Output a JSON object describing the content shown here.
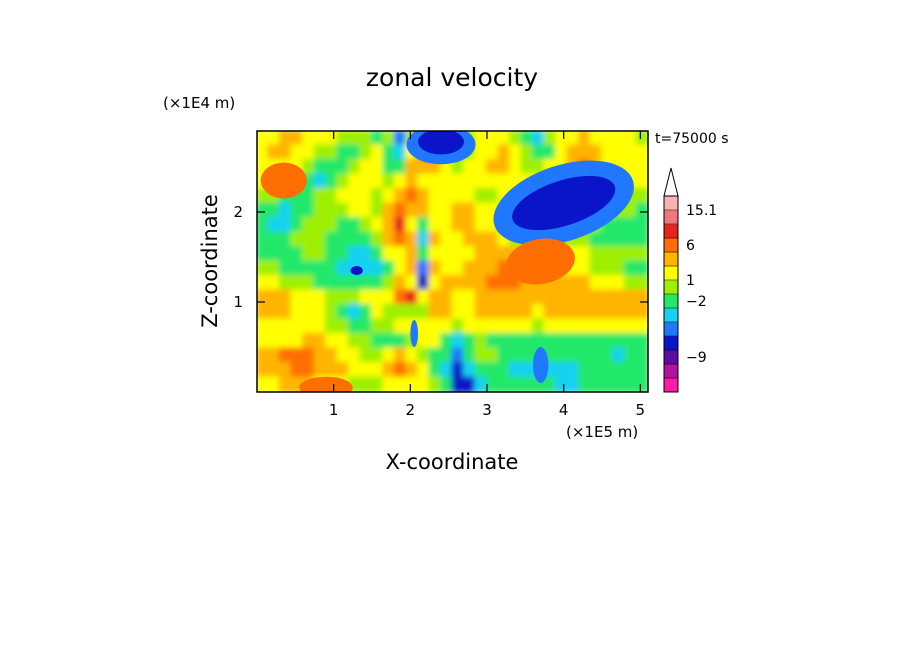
{
  "chart_data": {
    "type": "heatmap",
    "title": "zonal velocity",
    "time_label": "t=75000 s",
    "xlabel": "X-coordinate",
    "ylabel": "Z-coordinate",
    "x_scale_label": "(×1E5 m)",
    "y_scale_label": "(×1E4 m)",
    "x_range": [
      0,
      5.1
    ],
    "y_range": [
      0,
      2.9
    ],
    "x_ticks": [
      {
        "value": 1,
        "label": "1"
      },
      {
        "value": 2,
        "label": "2"
      },
      {
        "value": 3,
        "label": "3"
      },
      {
        "value": 4,
        "label": "4"
      },
      {
        "value": 5,
        "label": "5"
      }
    ],
    "y_ticks": [
      {
        "value": 1,
        "label": "1"
      },
      {
        "value": 2,
        "label": "2"
      }
    ],
    "colorbar": {
      "levels": [
        {
          "color": "#ff1aa8"
        },
        {
          "color": "#b3119e"
        },
        {
          "color": "#5a0fa0"
        },
        {
          "color": "#0a14c8"
        },
        {
          "color": "#1f78ff"
        },
        {
          "color": "#16d2f0"
        },
        {
          "color": "#23e86a"
        },
        {
          "color": "#9ef000"
        },
        {
          "color": "#ffff00"
        },
        {
          "color": "#ffb400"
        },
        {
          "color": "#ff6e00"
        },
        {
          "color": "#e8231e"
        },
        {
          "color": "#f07878"
        },
        {
          "color": "#f7b3b3"
        }
      ],
      "labels": [
        {
          "text": "15.1",
          "level": 13
        },
        {
          "text": "6",
          "level": 10.5
        },
        {
          "text": "1",
          "level": 8
        },
        {
          "text": "−2",
          "level": 6.5
        },
        {
          "text": "−9",
          "level": 2.5
        }
      ],
      "extend": "max"
    },
    "field_grid": {
      "cols": 34,
      "rows": 18,
      "values": [
        [
          8,
          8,
          9,
          9,
          8,
          8,
          8,
          7,
          7,
          7,
          6,
          7,
          4,
          7,
          8,
          9,
          7,
          5,
          7,
          8,
          8,
          8,
          7,
          6,
          5,
          7,
          8,
          8,
          9,
          8,
          8,
          8,
          8,
          7
        ],
        [
          8,
          9,
          9,
          8,
          8,
          7,
          7,
          6,
          6,
          7,
          8,
          6,
          5,
          8,
          10,
          11,
          9,
          6,
          7,
          8,
          8,
          9,
          8,
          7,
          6,
          6,
          8,
          9,
          9,
          9,
          8,
          8,
          8,
          8
        ],
        [
          8,
          8,
          8,
          8,
          7,
          6,
          6,
          6,
          7,
          8,
          8,
          6,
          6,
          9,
          9,
          9,
          8,
          7,
          8,
          8,
          9,
          9,
          8,
          7,
          7,
          8,
          8,
          9,
          10,
          9,
          8,
          8,
          8,
          8
        ],
        [
          8,
          8,
          8,
          7,
          6,
          5,
          6,
          7,
          8,
          8,
          8,
          7,
          8,
          9,
          8,
          8,
          8,
          8,
          8,
          8,
          8,
          8,
          8,
          8,
          8,
          8,
          8,
          9,
          9,
          9,
          9,
          8,
          8,
          8
        ],
        [
          7,
          7,
          6,
          6,
          6,
          7,
          7,
          8,
          8,
          8,
          7,
          8,
          9,
          10,
          9,
          8,
          8,
          8,
          8,
          7,
          7,
          8,
          8,
          8,
          8,
          8,
          8,
          8,
          8,
          8,
          8,
          8,
          7,
          7
        ],
        [
          6,
          6,
          5,
          6,
          6,
          7,
          7,
          7,
          8,
          8,
          7,
          9,
          10,
          9,
          9,
          8,
          8,
          9,
          9,
          8,
          8,
          8,
          8,
          8,
          9,
          9,
          8,
          8,
          8,
          8,
          8,
          7,
          7,
          6
        ],
        [
          6,
          5,
          5,
          6,
          7,
          7,
          7,
          6,
          6,
          7,
          8,
          9,
          11,
          8,
          6,
          8,
          8,
          9,
          9,
          8,
          8,
          7,
          7,
          7,
          7,
          7,
          7,
          7,
          7,
          7,
          6,
          6,
          6,
          6
        ],
        [
          6,
          6,
          6,
          7,
          7,
          7,
          6,
          6,
          6,
          6,
          7,
          9,
          10,
          9,
          5,
          9,
          8,
          8,
          9,
          9,
          9,
          8,
          7,
          7,
          7,
          7,
          7,
          7,
          7,
          6,
          6,
          6,
          6,
          6
        ],
        [
          6,
          6,
          6,
          6,
          7,
          7,
          6,
          6,
          5,
          5,
          6,
          8,
          8,
          9,
          6,
          8,
          8,
          8,
          8,
          9,
          9,
          9,
          9,
          8,
          8,
          8,
          8,
          8,
          8,
          7,
          7,
          7,
          7,
          7
        ],
        [
          7,
          7,
          6,
          6,
          6,
          6,
          6,
          5,
          5,
          5,
          5,
          6,
          8,
          9,
          4,
          9,
          8,
          8,
          9,
          9,
          9,
          10,
          10,
          9,
          9,
          9,
          8,
          8,
          8,
          7,
          7,
          7,
          6,
          6
        ],
        [
          8,
          8,
          7,
          7,
          7,
          6,
          6,
          6,
          6,
          6,
          6,
          7,
          9,
          8,
          3,
          8,
          9,
          9,
          9,
          9,
          10,
          10,
          10,
          9,
          9,
          9,
          9,
          9,
          9,
          8,
          8,
          8,
          7,
          7
        ],
        [
          9,
          9,
          9,
          8,
          8,
          8,
          7,
          7,
          7,
          8,
          8,
          8,
          10,
          11,
          8,
          9,
          9,
          8,
          8,
          9,
          9,
          9,
          9,
          9,
          9,
          9,
          9,
          9,
          9,
          9,
          9,
          9,
          9,
          9
        ],
        [
          9,
          9,
          9,
          8,
          8,
          8,
          7,
          6,
          5,
          6,
          8,
          7,
          7,
          7,
          7,
          9,
          9,
          8,
          8,
          9,
          9,
          9,
          9,
          9,
          8,
          9,
          9,
          9,
          9,
          9,
          9,
          9,
          9,
          9
        ],
        [
          8,
          8,
          8,
          8,
          8,
          8,
          7,
          7,
          6,
          6,
          7,
          7,
          8,
          8,
          8,
          8,
          8,
          7,
          8,
          8,
          8,
          8,
          8,
          8,
          7,
          8,
          8,
          8,
          8,
          8,
          8,
          8,
          8,
          8
        ],
        [
          8,
          8,
          8,
          8,
          9,
          9,
          8,
          8,
          7,
          7,
          6,
          6,
          6,
          7,
          8,
          8,
          6,
          5,
          6,
          7,
          6,
          6,
          6,
          6,
          6,
          6,
          6,
          6,
          6,
          6,
          6,
          6,
          6,
          6
        ],
        [
          9,
          9,
          10,
          10,
          10,
          9,
          9,
          8,
          8,
          7,
          7,
          8,
          9,
          8,
          7,
          6,
          6,
          4,
          6,
          7,
          7,
          6,
          6,
          6,
          6,
          6,
          6,
          6,
          6,
          6,
          6,
          5,
          6,
          6
        ],
        [
          9,
          9,
          9,
          10,
          10,
          9,
          9,
          9,
          8,
          8,
          8,
          9,
          10,
          9,
          8,
          6,
          5,
          3,
          5,
          6,
          6,
          6,
          5,
          5,
          5,
          5,
          5,
          5,
          6,
          6,
          6,
          6,
          6,
          6
        ],
        [
          8,
          8,
          9,
          9,
          9,
          8,
          8,
          8,
          7,
          7,
          7,
          8,
          8,
          8,
          8,
          7,
          6,
          3,
          3,
          5,
          6,
          6,
          6,
          6,
          6,
          6,
          5,
          5,
          6,
          6,
          6,
          6,
          6,
          6
        ]
      ]
    },
    "features": [
      {
        "name": "strong-negative-band",
        "level": 3,
        "x": 4.0,
        "z": 2.1,
        "rx": 0.7,
        "rz": 0.25,
        "rot": -18
      },
      {
        "name": "strong-negative-band",
        "level": 4,
        "x": 4.0,
        "z": 2.1,
        "rx": 0.95,
        "rz": 0.42,
        "rot": -18
      },
      {
        "name": "strong-negative-top",
        "level": 3,
        "x": 2.4,
        "z": 2.78,
        "rx": 0.3,
        "rz": 0.14,
        "rot": 0
      },
      {
        "name": "strong-negative-top",
        "level": 4,
        "x": 2.4,
        "z": 2.75,
        "rx": 0.45,
        "rz": 0.22,
        "rot": 0
      },
      {
        "name": "positive-patch",
        "level": 10,
        "x": 0.35,
        "z": 2.35,
        "rx": 0.3,
        "rz": 0.2,
        "rot": 0
      },
      {
        "name": "positive-patch",
        "level": 10,
        "x": 0.9,
        "z": 0.05,
        "rx": 0.35,
        "rz": 0.12,
        "rot": 0
      },
      {
        "name": "positive-patch",
        "level": 10,
        "x": 3.7,
        "z": 1.45,
        "rx": 0.45,
        "rz": 0.25,
        "rot": -10
      },
      {
        "name": "negative-spot",
        "level": 3,
        "x": 1.3,
        "z": 1.35,
        "rx": 0.08,
        "rz": 0.05,
        "rot": 0
      },
      {
        "name": "negative-spot",
        "level": 4,
        "x": 2.05,
        "z": 0.65,
        "rx": 0.05,
        "rz": 0.15,
        "rot": 0
      },
      {
        "name": "negative-spot",
        "level": 4,
        "x": 3.7,
        "z": 0.3,
        "rx": 0.1,
        "rz": 0.2,
        "rot": 0
      }
    ]
  }
}
